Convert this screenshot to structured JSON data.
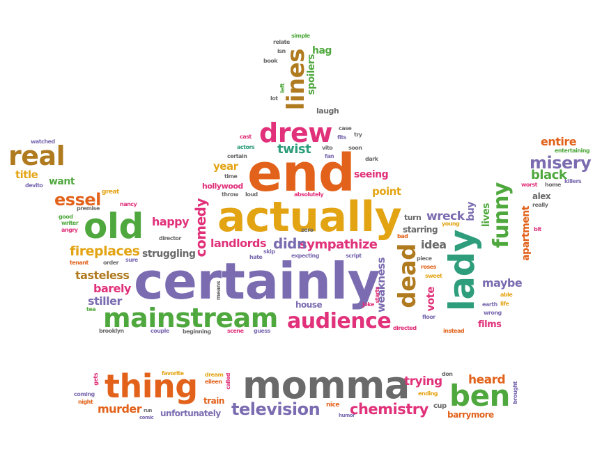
{
  "words": [
    {
      "text": "certainly",
      "color": "#7b6bb0"
    },
    {
      "text": "end",
      "color": "#e2621b"
    },
    {
      "text": "actually",
      "color": "#e3a414"
    },
    {
      "text": "momma",
      "color": "#6a6a6a"
    },
    {
      "text": "old",
      "color": "#4fa83d"
    },
    {
      "text": "mainstream",
      "color": "#4fa83d"
    },
    {
      "text": "thing",
      "color": "#e2621b"
    },
    {
      "text": "drew",
      "color": "#e0317a"
    },
    {
      "text": "lady",
      "color": "#2e9d7b"
    },
    {
      "text": "audience",
      "color": "#e0317a"
    },
    {
      "text": "ben",
      "color": "#4fa83d"
    },
    {
      "text": "real",
      "color": "#b07a1f"
    },
    {
      "text": "funny",
      "color": "#4fa83d"
    },
    {
      "text": "lines",
      "color": "#b07a1f"
    },
    {
      "text": "dead",
      "color": "#b07a1f"
    },
    {
      "text": "television",
      "color": "#7b6bb0"
    },
    {
      "text": "chemistry",
      "color": "#e0317a"
    },
    {
      "text": "misery",
      "color": "#7b6bb0"
    },
    {
      "text": "essel",
      "color": "#e2621b"
    },
    {
      "text": "comedy",
      "color": "#e0317a"
    },
    {
      "text": "fireplaces",
      "color": "#e3a414"
    },
    {
      "text": "sympathize",
      "color": "#e0317a"
    },
    {
      "text": "landlords",
      "color": "#e0317a"
    },
    {
      "text": "didn",
      "color": "#7b6bb0"
    },
    {
      "text": "twist",
      "color": "#2e9d7b"
    },
    {
      "text": "black",
      "color": "#4fa83d"
    },
    {
      "text": "entire",
      "color": "#e2621b"
    },
    {
      "text": "trying",
      "color": "#e0317a"
    },
    {
      "text": "heard",
      "color": "#e2621b"
    },
    {
      "text": "murder",
      "color": "#e2621b"
    },
    {
      "text": "unfortunately",
      "color": "#7b6bb0"
    },
    {
      "text": "wreck",
      "color": "#7b6bb0"
    },
    {
      "text": "struggling",
      "color": "#6a6a6a"
    },
    {
      "text": "tasteless",
      "color": "#b07a1f"
    },
    {
      "text": "barely",
      "color": "#e0317a"
    },
    {
      "text": "stiller",
      "color": "#7b6bb0"
    },
    {
      "text": "happy",
      "color": "#e0317a"
    },
    {
      "text": "idea",
      "color": "#6a6a6a"
    },
    {
      "text": "maybe",
      "color": "#7b6bb0"
    },
    {
      "text": "weakness",
      "color": "#7b6bb0"
    },
    {
      "text": "seeing",
      "color": "#e0317a"
    },
    {
      "text": "point",
      "color": "#e3a414"
    },
    {
      "text": "year",
      "color": "#e3a414"
    },
    {
      "text": "hollywood",
      "color": "#e0317a"
    },
    {
      "text": "want",
      "color": "#4fa83d"
    },
    {
      "text": "title",
      "color": "#e3a414"
    },
    {
      "text": "vote",
      "color": "#e0317a"
    },
    {
      "text": "house",
      "color": "#7b6bb0"
    },
    {
      "text": "films",
      "color": "#e0317a"
    },
    {
      "text": "lives",
      "color": "#4fa83d"
    },
    {
      "text": "buy",
      "color": "#7b6bb0"
    },
    {
      "text": "apartment",
      "color": "#e2621b"
    },
    {
      "text": "barrymore",
      "color": "#e2621b"
    },
    {
      "text": "spoilers",
      "color": "#4fa83d"
    },
    {
      "text": "hag",
      "color": "#4fa83d"
    },
    {
      "text": "laugh",
      "color": "#6a6a6a"
    },
    {
      "text": "starring",
      "color": "#6a6a6a"
    },
    {
      "text": "turn",
      "color": "#6a6a6a"
    },
    {
      "text": "train",
      "color": "#e2621b"
    },
    {
      "text": "alex",
      "color": "#6a6a6a"
    },
    {
      "text": "watched",
      "color": "#7b6bb0"
    },
    {
      "text": "devito",
      "color": "#7b6bb0"
    },
    {
      "text": "great",
      "color": "#e3a414"
    },
    {
      "text": "nancy",
      "color": "#e0317a"
    },
    {
      "text": "premise",
      "color": "#6a6a6a"
    },
    {
      "text": "good",
      "color": "#4fa83d"
    },
    {
      "text": "writer",
      "color": "#4fa83d"
    },
    {
      "text": "angry",
      "color": "#e0317a"
    },
    {
      "text": "director",
      "color": "#6a6a6a"
    },
    {
      "text": "tenant",
      "color": "#e2621b"
    },
    {
      "text": "order",
      "color": "#6a6a6a"
    },
    {
      "text": "sure",
      "color": "#7b6bb0"
    },
    {
      "text": "tea",
      "color": "#4fa83d"
    },
    {
      "text": "brooklyn",
      "color": "#6a6a6a"
    },
    {
      "text": "couple",
      "color": "#7b6bb0"
    },
    {
      "text": "beginning",
      "color": "#6a6a6a"
    },
    {
      "text": "scene",
      "color": "#e0317a"
    },
    {
      "text": "guess",
      "color": "#7b6bb0"
    },
    {
      "text": "directed",
      "color": "#e0317a"
    },
    {
      "text": "instead",
      "color": "#e2621b"
    },
    {
      "text": "floor",
      "color": "#7b6bb0"
    },
    {
      "text": "joke",
      "color": "#e0317a"
    },
    {
      "text": "starts",
      "color": "#e0317a"
    },
    {
      "text": "means",
      "color": "#6a6a6a"
    },
    {
      "text": "hate",
      "color": "#7b6bb0"
    },
    {
      "text": "expecting",
      "color": "#7b6bb0"
    },
    {
      "text": "script",
      "color": "#7b6bb0"
    },
    {
      "text": "skip",
      "color": "#7b6bb0"
    },
    {
      "text": "zero",
      "color": "#6a6a6a"
    },
    {
      "text": "bad",
      "color": "#e2621b"
    },
    {
      "text": "young",
      "color": "#e3a414"
    },
    {
      "text": "piece",
      "color": "#6a6a6a"
    },
    {
      "text": "roses",
      "color": "#e2621b"
    },
    {
      "text": "sweet",
      "color": "#e3a414"
    },
    {
      "text": "able",
      "color": "#e3a414"
    },
    {
      "text": "earth",
      "color": "#7b6bb0"
    },
    {
      "text": "life",
      "color": "#e3a414"
    },
    {
      "text": "wrong",
      "color": "#7b6bb0"
    },
    {
      "text": "worst",
      "color": "#e0317a"
    },
    {
      "text": "home",
      "color": "#6a6a6a"
    },
    {
      "text": "killers",
      "color": "#7b6bb0"
    },
    {
      "text": "really",
      "color": "#6a6a6a"
    },
    {
      "text": "bit",
      "color": "#e0317a"
    },
    {
      "text": "entertaining",
      "color": "#4fa83d"
    },
    {
      "text": "cast",
      "color": "#e0317a"
    },
    {
      "text": "actors",
      "color": "#2e9d7b"
    },
    {
      "text": "certain",
      "color": "#6a6a6a"
    },
    {
      "text": "time",
      "color": "#6a6a6a"
    },
    {
      "text": "throw",
      "color": "#6a6a6a"
    },
    {
      "text": "loud",
      "color": "#6a6a6a"
    },
    {
      "text": "absolutely",
      "color": "#e0317a"
    },
    {
      "text": "fan",
      "color": "#7b6bb0"
    },
    {
      "text": "vito",
      "color": "#6a6a6a"
    },
    {
      "text": "fits",
      "color": "#7b6bb0"
    },
    {
      "text": "soon",
      "color": "#6a6a6a"
    },
    {
      "text": "dark",
      "color": "#6a6a6a"
    },
    {
      "text": "case",
      "color": "#6a6a6a"
    },
    {
      "text": "try",
      "color": "#6a6a6a"
    },
    {
      "text": "relate",
      "color": "#6a6a6a"
    },
    {
      "text": "simple",
      "color": "#4fa83d"
    },
    {
      "text": "isn",
      "color": "#6a6a6a"
    },
    {
      "text": "book",
      "color": "#6a6a6a"
    },
    {
      "text": "left",
      "color": "#4fa83d"
    },
    {
      "text": "lot",
      "color": "#6a6a6a"
    },
    {
      "text": "gets",
      "color": "#e0317a"
    },
    {
      "text": "coming",
      "color": "#7b6bb0"
    },
    {
      "text": "night",
      "color": "#e2621b"
    },
    {
      "text": "run",
      "color": "#6a6a6a"
    },
    {
      "text": "comic",
      "color": "#7b6bb0"
    },
    {
      "text": "favorite",
      "color": "#e3a414"
    },
    {
      "text": "eileen",
      "color": "#e2621b"
    },
    {
      "text": "dream",
      "color": "#e3a414"
    },
    {
      "text": "called",
      "color": "#e0317a"
    },
    {
      "text": "nice",
      "color": "#e2621b"
    },
    {
      "text": "humor",
      "color": "#7b6bb0"
    },
    {
      "text": "ending",
      "color": "#e3a414"
    },
    {
      "text": "don",
      "color": "#6a6a6a"
    },
    {
      "text": "cup",
      "color": "#6a6a6a"
    },
    {
      "text": "brought",
      "color": "#7b6bb0"
    }
  ]
}
